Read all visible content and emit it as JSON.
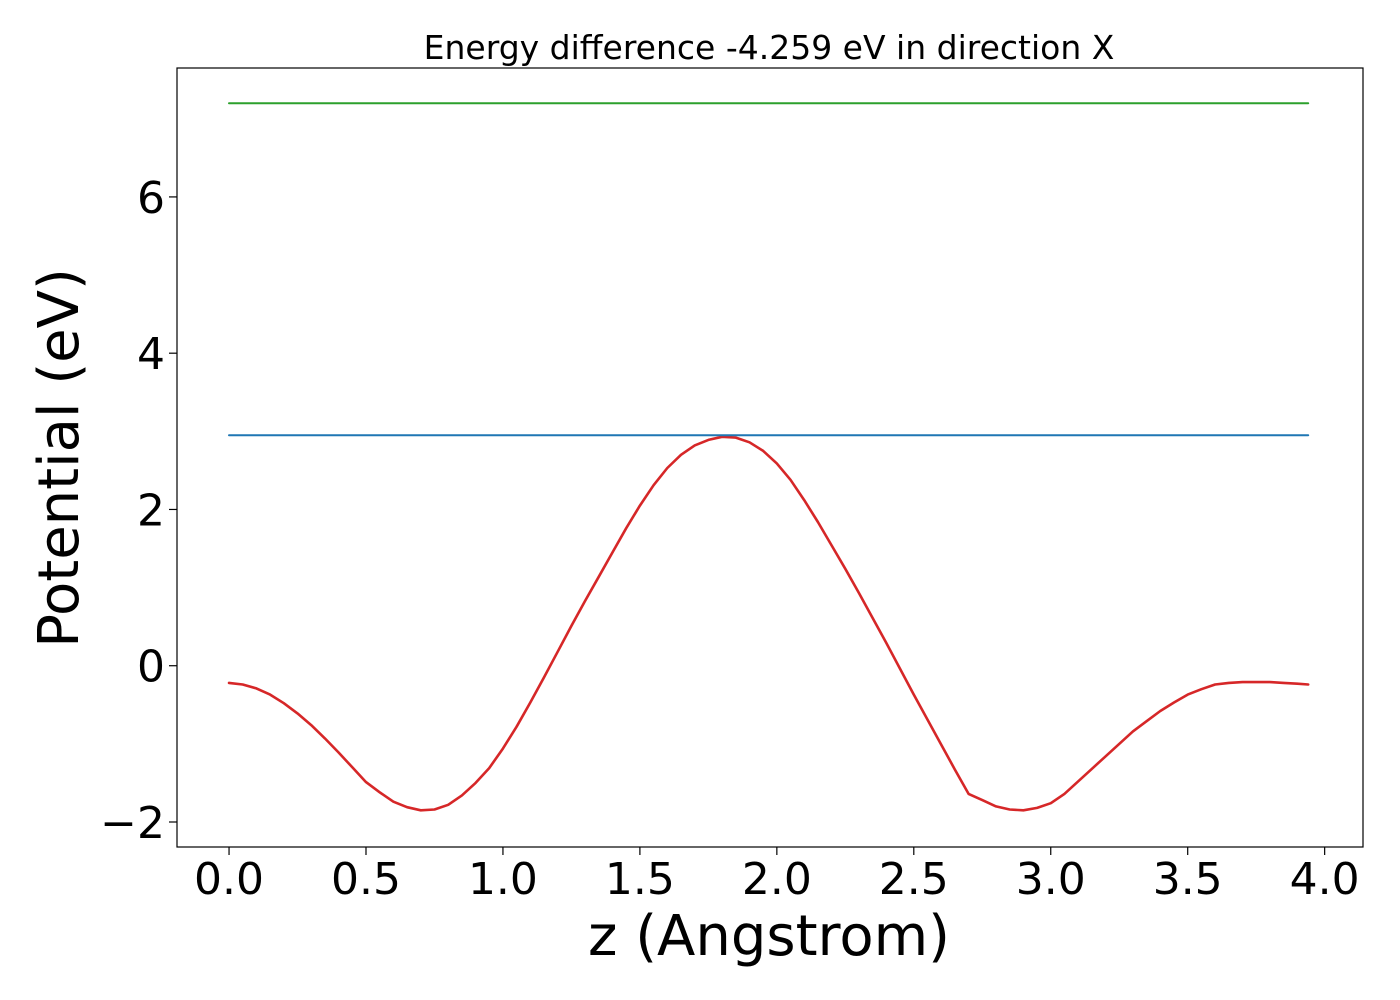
{
  "chart_data": {
    "type": "line",
    "title": "Energy difference -4.259 eV in direction X",
    "xlabel": "z (Angstrom)",
    "ylabel": "Potential (eV)",
    "xlim": [
      -0.19,
      4.14
    ],
    "ylim": [
      -2.32,
      7.65
    ],
    "xticks": [
      0.0,
      0.5,
      1.0,
      1.5,
      2.0,
      2.5,
      3.0,
      3.5,
      4.0
    ],
    "xtick_labels": [
      "0.0",
      "0.5",
      "1.0",
      "1.5",
      "2.0",
      "2.5",
      "3.0",
      "3.5",
      "4.0"
    ],
    "yticks": [
      -2,
      0,
      2,
      4,
      6
    ],
    "ytick_labels": [
      "−2",
      "0",
      "2",
      "4",
      "6"
    ],
    "grid": false,
    "legend": "none",
    "series": [
      {
        "color": "#d62728",
        "x": [
          0.0,
          0.05,
          0.1,
          0.15,
          0.2,
          0.25,
          0.3,
          0.35,
          0.4,
          0.45,
          0.5,
          0.55,
          0.6,
          0.65,
          0.7,
          0.75,
          0.8,
          0.85,
          0.9,
          0.95,
          1.0,
          1.05,
          1.1,
          1.15,
          1.2,
          1.25,
          1.3,
          1.35,
          1.4,
          1.45,
          1.5,
          1.55,
          1.6,
          1.65,
          1.7,
          1.75,
          1.8,
          1.85,
          1.9,
          1.95,
          2.0,
          2.05,
          2.1,
          2.15,
          2.2,
          2.25,
          2.3,
          2.35,
          2.4,
          2.45,
          2.5,
          2.55,
          2.6,
          2.65,
          2.7,
          2.75,
          2.8,
          2.85,
          2.9,
          2.95,
          3.0,
          3.05,
          3.1,
          3.15,
          3.2,
          3.25,
          3.3,
          3.35,
          3.4,
          3.45,
          3.5,
          3.55,
          3.6,
          3.65,
          3.7,
          3.75,
          3.8,
          3.85,
          3.9,
          3.94
        ],
        "y": [
          -0.22,
          -0.24,
          -0.29,
          -0.37,
          -0.48,
          -0.61,
          -0.76,
          -0.93,
          -1.11,
          -1.3,
          -1.49,
          -1.62,
          -1.74,
          -1.81,
          -1.85,
          -1.84,
          -1.78,
          -1.66,
          -1.5,
          -1.31,
          -1.06,
          -0.78,
          -0.47,
          -0.15,
          0.18,
          0.51,
          0.83,
          1.14,
          1.45,
          1.76,
          2.05,
          2.31,
          2.53,
          2.7,
          2.82,
          2.89,
          2.93,
          2.92,
          2.86,
          2.75,
          2.59,
          2.38,
          2.12,
          1.84,
          1.54,
          1.24,
          0.93,
          0.61,
          0.29,
          -0.04,
          -0.37,
          -0.69,
          -1.01,
          -1.33,
          -1.64,
          -1.72,
          -1.8,
          -1.84,
          -1.85,
          -1.82,
          -1.76,
          -1.64,
          -1.48,
          -1.32,
          -1.16,
          -1.0,
          -0.84,
          -0.71,
          -0.58,
          -0.47,
          -0.37,
          -0.3,
          -0.24,
          -0.22,
          -0.21,
          -0.21,
          -0.21,
          -0.22,
          -0.23,
          -0.24
        ]
      },
      {
        "color": "#1f77b4",
        "x": [
          0.0,
          3.94
        ],
        "y": [
          2.95,
          2.95
        ]
      },
      {
        "color": "#2ca02c",
        "x": [
          0.0,
          3.94
        ],
        "y": [
          7.2,
          7.2
        ]
      }
    ]
  }
}
